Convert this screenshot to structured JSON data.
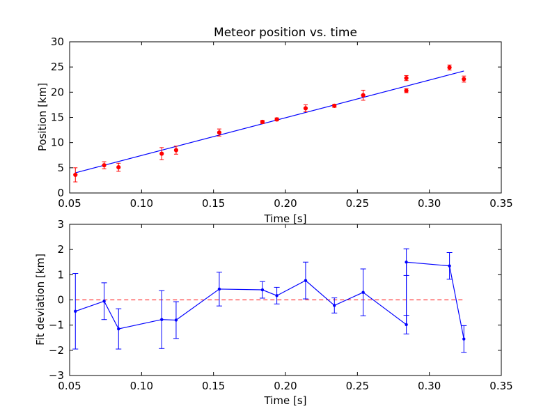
{
  "chart_data": [
    {
      "type": "scatter",
      "title": "Meteor position vs. time",
      "xlabel": "Time [s]",
      "ylabel": "Position [km]",
      "xlim": [
        0.05,
        0.35
      ],
      "ylim": [
        0,
        30
      ],
      "xticks": [
        "0.05",
        "0.10",
        "0.15",
        "0.20",
        "0.25",
        "0.30",
        "0.35"
      ],
      "yticks": [
        "0",
        "5",
        "10",
        "15",
        "20",
        "25",
        "30"
      ],
      "grid": false,
      "colors": {
        "points": "#ff0000",
        "fit": "#0000ff"
      },
      "series": [
        {
          "style": "markers-with-error-bars",
          "points": [
            {
              "x": 0.054,
              "y": 3.6,
              "err": 1.4
            },
            {
              "x": 0.074,
              "y": 5.5,
              "err": 0.7
            },
            {
              "x": 0.084,
              "y": 5.1,
              "err": 0.8
            },
            {
              "x": 0.114,
              "y": 7.8,
              "err": 1.2
            },
            {
              "x": 0.124,
              "y": 8.5,
              "err": 0.8
            },
            {
              "x": 0.154,
              "y": 12.0,
              "err": 0.7
            },
            {
              "x": 0.184,
              "y": 14.1,
              "err": 0.3
            },
            {
              "x": 0.194,
              "y": 14.6,
              "err": 0.3
            },
            {
              "x": 0.214,
              "y": 16.8,
              "err": 0.7
            },
            {
              "x": 0.234,
              "y": 17.3,
              "err": 0.3
            },
            {
              "x": 0.254,
              "y": 19.4,
              "err": 1.0
            },
            {
              "x": 0.284,
              "y": 20.3,
              "err": 0.4
            },
            {
              "x": 0.284,
              "y": 22.8,
              "err": 0.5
            },
            {
              "x": 0.314,
              "y": 24.9,
              "err": 0.5
            },
            {
              "x": 0.324,
              "y": 22.6,
              "err": 0.6
            }
          ]
        },
        {
          "style": "line",
          "points": [
            {
              "x": 0.054,
              "y": 4.0
            },
            {
              "x": 0.324,
              "y": 24.2
            }
          ]
        }
      ]
    },
    {
      "type": "line",
      "title": "",
      "xlabel": "Time [s]",
      "ylabel": "Fit deviation [km]",
      "xlim": [
        0.05,
        0.35
      ],
      "ylim": [
        -3,
        3
      ],
      "xticks": [
        "0.05",
        "0.10",
        "0.15",
        "0.20",
        "0.25",
        "0.30",
        "0.35"
      ],
      "yticks": [
        "−3",
        "−2",
        "−1",
        "0",
        "1",
        "2",
        "3"
      ],
      "grid": false,
      "colors": {
        "line": "#0000ff",
        "reference": "#ff0000"
      },
      "reference_line": {
        "y": 0,
        "x": [
          0.054,
          0.324
        ],
        "style": "dashed"
      },
      "series": [
        {
          "style": "line-with-markers-and-error-bars",
          "points": [
            {
              "x": 0.054,
              "y": -0.45,
              "err": 1.5
            },
            {
              "x": 0.074,
              "y": -0.05,
              "err": 0.73
            },
            {
              "x": 0.084,
              "y": -1.15,
              "err": 0.8
            },
            {
              "x": 0.114,
              "y": -0.78,
              "err": 1.15
            },
            {
              "x": 0.124,
              "y": -0.8,
              "err": 0.73
            },
            {
              "x": 0.154,
              "y": 0.43,
              "err": 0.67
            },
            {
              "x": 0.184,
              "y": 0.4,
              "err": 0.33
            },
            {
              "x": 0.194,
              "y": 0.17,
              "err": 0.33
            },
            {
              "x": 0.214,
              "y": 0.77,
              "err": 0.73
            },
            {
              "x": 0.234,
              "y": -0.22,
              "err": 0.3
            },
            {
              "x": 0.254,
              "y": 0.3,
              "err": 0.93
            },
            {
              "x": 0.284,
              "y": -0.98,
              "err": 0.37
            },
            {
              "x": 0.284,
              "y": 1.5,
              "err": 0.53
            },
            {
              "x": 0.314,
              "y": 1.35,
              "err": 0.53
            },
            {
              "x": 0.324,
              "y": -1.55,
              "err": 0.53
            }
          ]
        }
      ]
    }
  ]
}
